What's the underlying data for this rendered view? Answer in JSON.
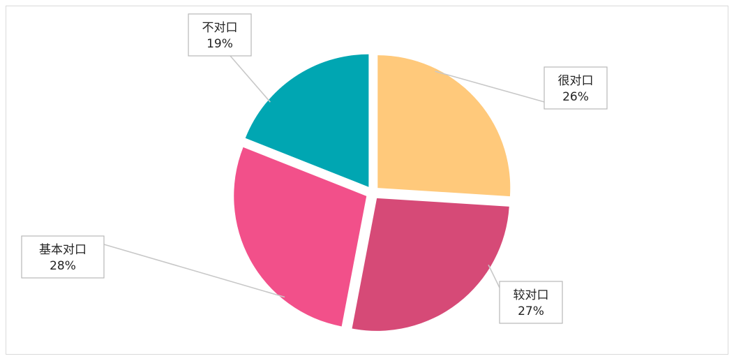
{
  "chart_data": {
    "type": "pie",
    "title": "",
    "slices": [
      {
        "label": "很对口",
        "value": 26,
        "percent_label": "26%",
        "color": "#FFC97B"
      },
      {
        "label": "较对口",
        "value": 27,
        "percent_label": "27%",
        "color": "#D64A77"
      },
      {
        "label": "基本对口",
        "value": 28,
        "percent_label": "28%",
        "color": "#F2508A"
      },
      {
        "label": "不对口",
        "value": 19,
        "percent_label": "19%",
        "color": "#00A6B2"
      }
    ],
    "exploded": true,
    "start_angle_deg": 0,
    "direction": "clockwise",
    "legend": "none",
    "data_labels": "outside-callout"
  }
}
